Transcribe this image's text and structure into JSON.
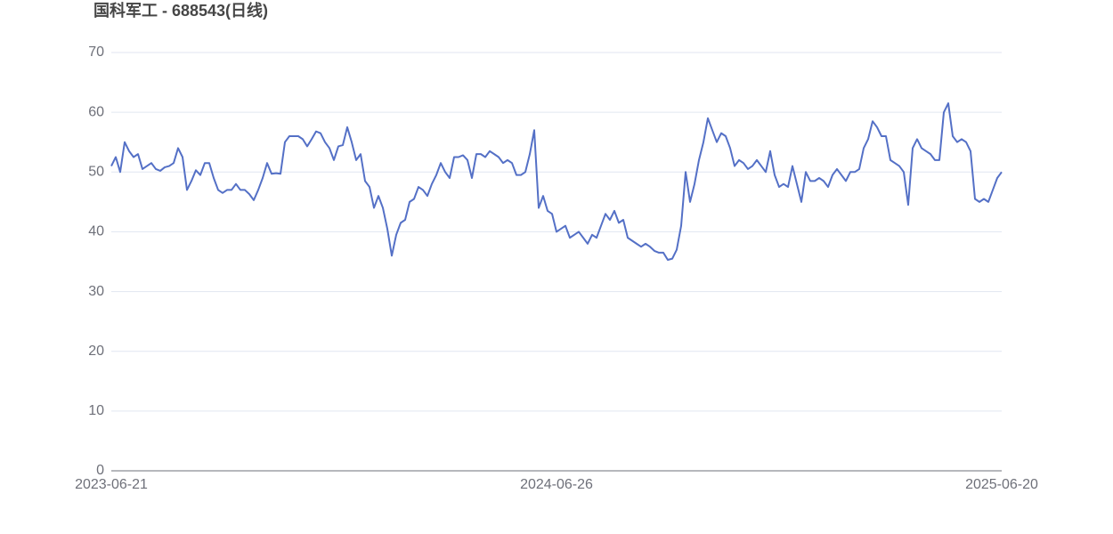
{
  "chart_data": {
    "type": "line",
    "title": "国科军工 - 688543(日线)",
    "categories": [
      "2023-06-21",
      null,
      null,
      null,
      null,
      null,
      null,
      null,
      null,
      null,
      null,
      null,
      null,
      null,
      null,
      null,
      null,
      null,
      null,
      null,
      null,
      null,
      null,
      null,
      null,
      null,
      null,
      null,
      null,
      null,
      null,
      null,
      null,
      null,
      null,
      null,
      null,
      null,
      null,
      null,
      null,
      null,
      null,
      null,
      null,
      null,
      null,
      null,
      null,
      null,
      null,
      null,
      null,
      null,
      null,
      null,
      null,
      null,
      null,
      null,
      null,
      null,
      null,
      null,
      null,
      null,
      null,
      null,
      null,
      null,
      null,
      null,
      null,
      null,
      null,
      null,
      null,
      null,
      null,
      null,
      null,
      null,
      null,
      null,
      null,
      null,
      null,
      null,
      null,
      null,
      null,
      null,
      null,
      null,
      null,
      null,
      null,
      null,
      null,
      null,
      "2024-06-26",
      null,
      null,
      null,
      null,
      null,
      null,
      null,
      null,
      null,
      null,
      null,
      null,
      null,
      null,
      null,
      null,
      null,
      null,
      null,
      null,
      null,
      null,
      null,
      null,
      null,
      null,
      null,
      null,
      null,
      null,
      null,
      null,
      null,
      null,
      null,
      null,
      null,
      null,
      null,
      null,
      null,
      null,
      null,
      null,
      null,
      null,
      null,
      null,
      null,
      null,
      null,
      null,
      null,
      null,
      null,
      null,
      null,
      null,
      null,
      null,
      null,
      null,
      null,
      null,
      null,
      null,
      null,
      null,
      null,
      null,
      null,
      null,
      null,
      null,
      null,
      null,
      null,
      null,
      null,
      null,
      null,
      null,
      null,
      null,
      null,
      null,
      null,
      null,
      null,
      null,
      null,
      null,
      null,
      null,
      null,
      null,
      null,
      null,
      null,
      "2025-06-20"
    ],
    "series": [
      {
        "color": "#5470c6",
        "values": [
          51,
          52.5,
          50,
          55,
          53.5,
          52.5,
          53,
          50.5,
          51,
          51.5,
          50.5,
          50.2,
          50.8,
          51,
          51.5,
          54,
          52.5,
          47,
          48.5,
          50.3,
          49.5,
          51.5,
          51.5,
          49,
          47,
          46.5,
          47,
          47,
          48,
          47,
          47,
          46.3,
          45.3,
          47,
          49,
          51.5,
          49.7,
          49.8,
          49.7,
          55,
          56,
          56,
          56,
          55.5,
          54.3,
          55.5,
          56.8,
          56.5,
          55,
          54,
          52,
          54.3,
          54.5,
          57.5,
          55,
          52,
          53,
          48.5,
          47.5,
          44,
          46,
          44,
          40.5,
          36,
          39.5,
          41.5,
          42,
          45,
          45.5,
          47.5,
          47,
          46,
          48,
          49.5,
          51.5,
          50,
          49,
          52.5,
          52.5,
          52.8,
          52,
          49,
          53,
          53,
          52.5,
          53.5,
          53,
          52.5,
          51.5,
          52,
          51.5,
          49.5,
          49.5,
          50,
          53,
          57,
          44,
          46,
          43.5,
          43,
          40,
          40.5,
          41,
          39,
          39.5,
          40,
          39,
          38,
          39.5,
          39,
          41,
          43,
          42,
          43.5,
          41.5,
          42,
          39,
          38.5,
          38,
          37.5,
          38,
          37.5,
          36.8,
          36.5,
          36.5,
          35.3,
          35.5,
          37,
          41,
          50,
          45,
          48,
          52,
          55,
          59,
          57,
          55,
          56.5,
          56,
          54,
          51,
          52,
          51.5,
          50.5,
          51,
          52,
          51,
          50,
          53.5,
          49.5,
          47.5,
          48,
          47.5,
          51,
          48,
          45,
          50,
          48.5,
          48.5,
          49,
          48.5,
          47.5,
          49.5,
          50.5,
          49.5,
          48.5,
          50,
          50,
          50.5,
          54,
          55.5,
          58.5,
          57.5,
          56,
          56,
          52,
          51.5,
          51,
          50,
          44.5,
          54,
          55.5,
          54,
          53.5,
          53,
          52,
          52,
          60,
          61.5,
          56,
          55,
          55.5,
          55,
          53.5,
          45.5,
          45,
          45.5,
          45,
          47,
          49,
          50
        ]
      }
    ],
    "ylim": [
      0,
      70
    ],
    "yticks": [
      0,
      10,
      20,
      30,
      40,
      50,
      60,
      70
    ],
    "grid": true
  }
}
